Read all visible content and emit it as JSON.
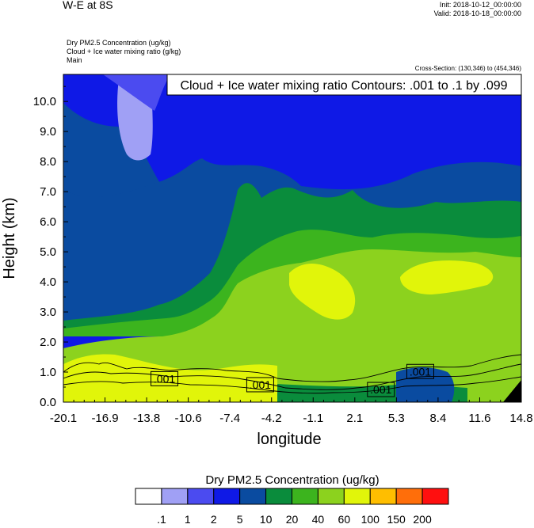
{
  "header": {
    "plot_title": "W-E at 8S",
    "init_label": "Init: 2018-10-12_00:00:00",
    "valid_label": "Valid: 2018-10-18_00:00:00",
    "var_line1": "Dry PM2.5 Concentration   (ug/kg)",
    "var_line2": "Cloud + Ice water mixing ratio   (g/kg)",
    "var_line3": "Main",
    "cross_section": "Cross-Section: (130,346) to (454,346)"
  },
  "chart_data": {
    "type": "heatmap",
    "title": "W-E at 8S",
    "xlabel": "longitude",
    "ylabel": "Height (km)",
    "xlim": [
      -20.1,
      14.8
    ],
    "ylim": [
      0.0,
      10.9
    ],
    "x_ticks": [
      "-20.1",
      "-16.9",
      "-13.8",
      "-10.6",
      "-7.4",
      "-4.2",
      "-1.1",
      "2.1",
      "5.3",
      "8.4",
      "11.6",
      "14.8"
    ],
    "y_ticks": [
      "0.0",
      "1.0",
      "2.0",
      "3.0",
      "4.0",
      "5.0",
      "6.0",
      "7.0",
      "8.0",
      "9.0",
      "10.0"
    ],
    "y_tick_values": [
      0,
      1,
      2,
      3,
      4,
      5,
      6,
      7,
      8,
      9,
      10
    ],
    "contour_title": "Cloud + Ice water mixing ratio Contours: .001 to .1 by .099",
    "contour_labels": [
      {
        "text": ".001",
        "lon": -12.4,
        "height": 0.78
      },
      {
        "text": ".001",
        "lon": -5.1,
        "height": 0.58
      },
      {
        "text": ".001",
        "lon": 4.1,
        "height": 0.42
      },
      {
        "text": ".001",
        "lon": 7.1,
        "height": 1.02
      }
    ],
    "colorbar": {
      "title": "Dry PM2.5 Concentration  (ug/kg)",
      "labels": [
        ".1",
        "1",
        "2",
        "5",
        "10",
        "20",
        "40",
        "60",
        "100",
        "150",
        "200"
      ],
      "colors": [
        "#ffffff",
        "#a0a0f5",
        "#4b4bf0",
        "#0f19e6",
        "#0a4ba0",
        "#0a8c3c",
        "#3cb41e",
        "#8cd21e",
        "#e1f50a",
        "#ffbe00",
        "#ff6e0a",
        "#ff0f0f"
      ]
    },
    "fields": [
      {
        "name": "cloud-ice-contours",
        "value": 0.001
      }
    ]
  }
}
